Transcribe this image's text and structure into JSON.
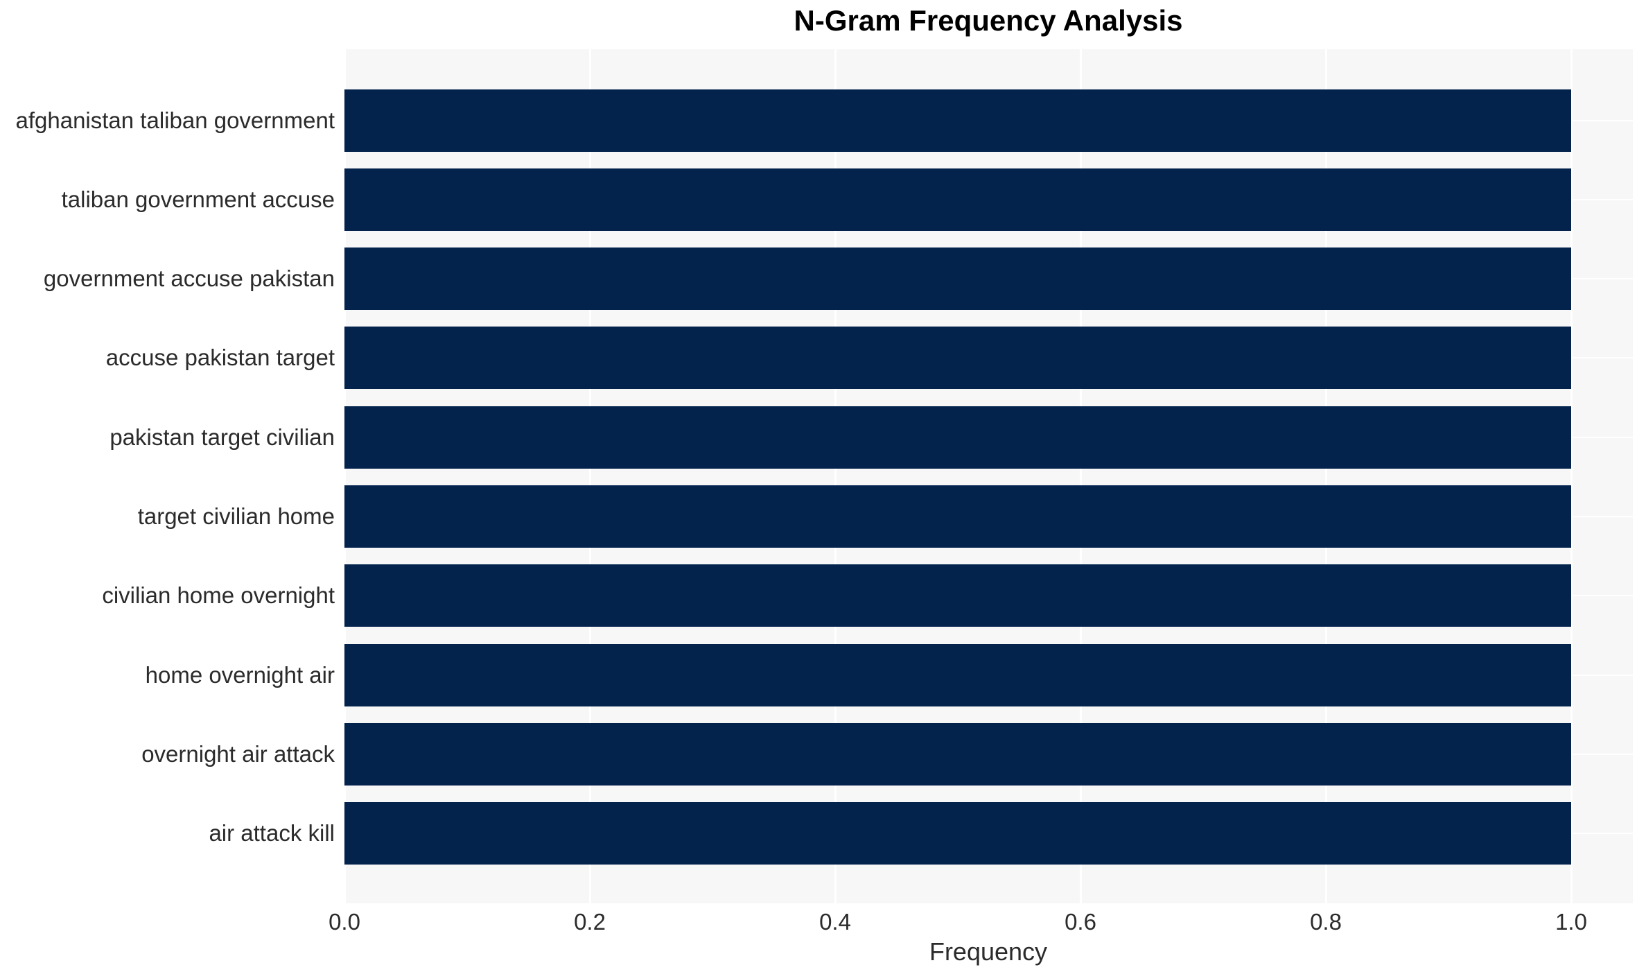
{
  "page": {
    "title": "N-Gram Frequency Analysis"
  },
  "chart_data": {
    "type": "bar",
    "orientation": "horizontal",
    "title": "N-Gram Frequency Analysis",
    "categories": [
      "afghanistan taliban government",
      "taliban government accuse",
      "government accuse pakistan",
      "accuse pakistan target",
      "pakistan target civilian",
      "target civilian home",
      "civilian home overnight",
      "home overnight air",
      "overnight air attack",
      "air attack kill"
    ],
    "values": [
      1.0,
      1.0,
      1.0,
      1.0,
      1.0,
      1.0,
      1.0,
      1.0,
      1.0,
      1.0
    ],
    "xlabel": "Frequency",
    "ylabel": "",
    "x_ticks": [
      "0.0",
      "0.2",
      "0.4",
      "0.6",
      "0.8",
      "1.0"
    ],
    "xlim": [
      0.0,
      1.05
    ],
    "grid": true,
    "legend": "none",
    "colors": {
      "bar": "#03224c",
      "plot_background": "#f7f7f7",
      "gridline": "#ffffff",
      "tick_text": "#2b2b2b",
      "title_text": "#000000",
      "page_background": "#ffffff"
    }
  }
}
